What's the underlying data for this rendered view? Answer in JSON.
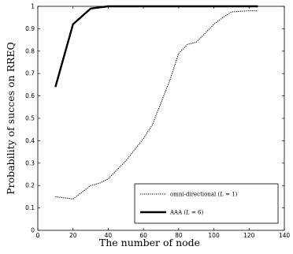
{
  "chart_data": {
    "type": "line",
    "title": "",
    "xlabel": "The number of node",
    "ylabel": "Probability of succes on RREQ",
    "xlim": [
      0,
      140
    ],
    "ylim": [
      0,
      1
    ],
    "xticks": [
      "0",
      "20",
      "40",
      "60",
      "80",
      "100",
      "120",
      "140"
    ],
    "yticks": [
      "0",
      "0.1",
      "0.2",
      "0.3",
      "0.4",
      "0.5",
      "0.6",
      "0.7",
      "0.8",
      "0.9",
      "1"
    ],
    "grid": false,
    "legend_position": "bottom-right",
    "series": [
      {
        "name": "omni-directional (L = 1)",
        "legend_main": "omni-directional (",
        "legend_var": "L",
        "legend_rest": " = 1)",
        "style": "dotted",
        "color": "#000000",
        "x": [
          10,
          15,
          20,
          25,
          30,
          35,
          40,
          45,
          50,
          55,
          60,
          65,
          70,
          75,
          80,
          85,
          90,
          95,
          100,
          105,
          110,
          115,
          120,
          125
        ],
        "y": [
          0.15,
          0.145,
          0.14,
          0.17,
          0.2,
          0.21,
          0.23,
          0.27,
          0.31,
          0.36,
          0.41,
          0.47,
          0.57,
          0.67,
          0.79,
          0.83,
          0.84,
          0.88,
          0.92,
          0.95,
          0.975,
          0.978,
          0.98,
          0.98
        ]
      },
      {
        "name": "AAA (L = 6)",
        "legend_main": "AAA (",
        "legend_var": "L",
        "legend_rest": " = 6)",
        "style": "solid",
        "color": "#000000",
        "x": [
          10,
          20,
          30,
          40,
          50,
          60,
          70,
          80,
          90,
          100,
          110,
          120,
          125
        ],
        "y": [
          0.64,
          0.92,
          0.99,
          1.0,
          1.0,
          1.0,
          1.0,
          1.0,
          1.0,
          1.0,
          1.0,
          1.0,
          1.0
        ]
      }
    ]
  }
}
